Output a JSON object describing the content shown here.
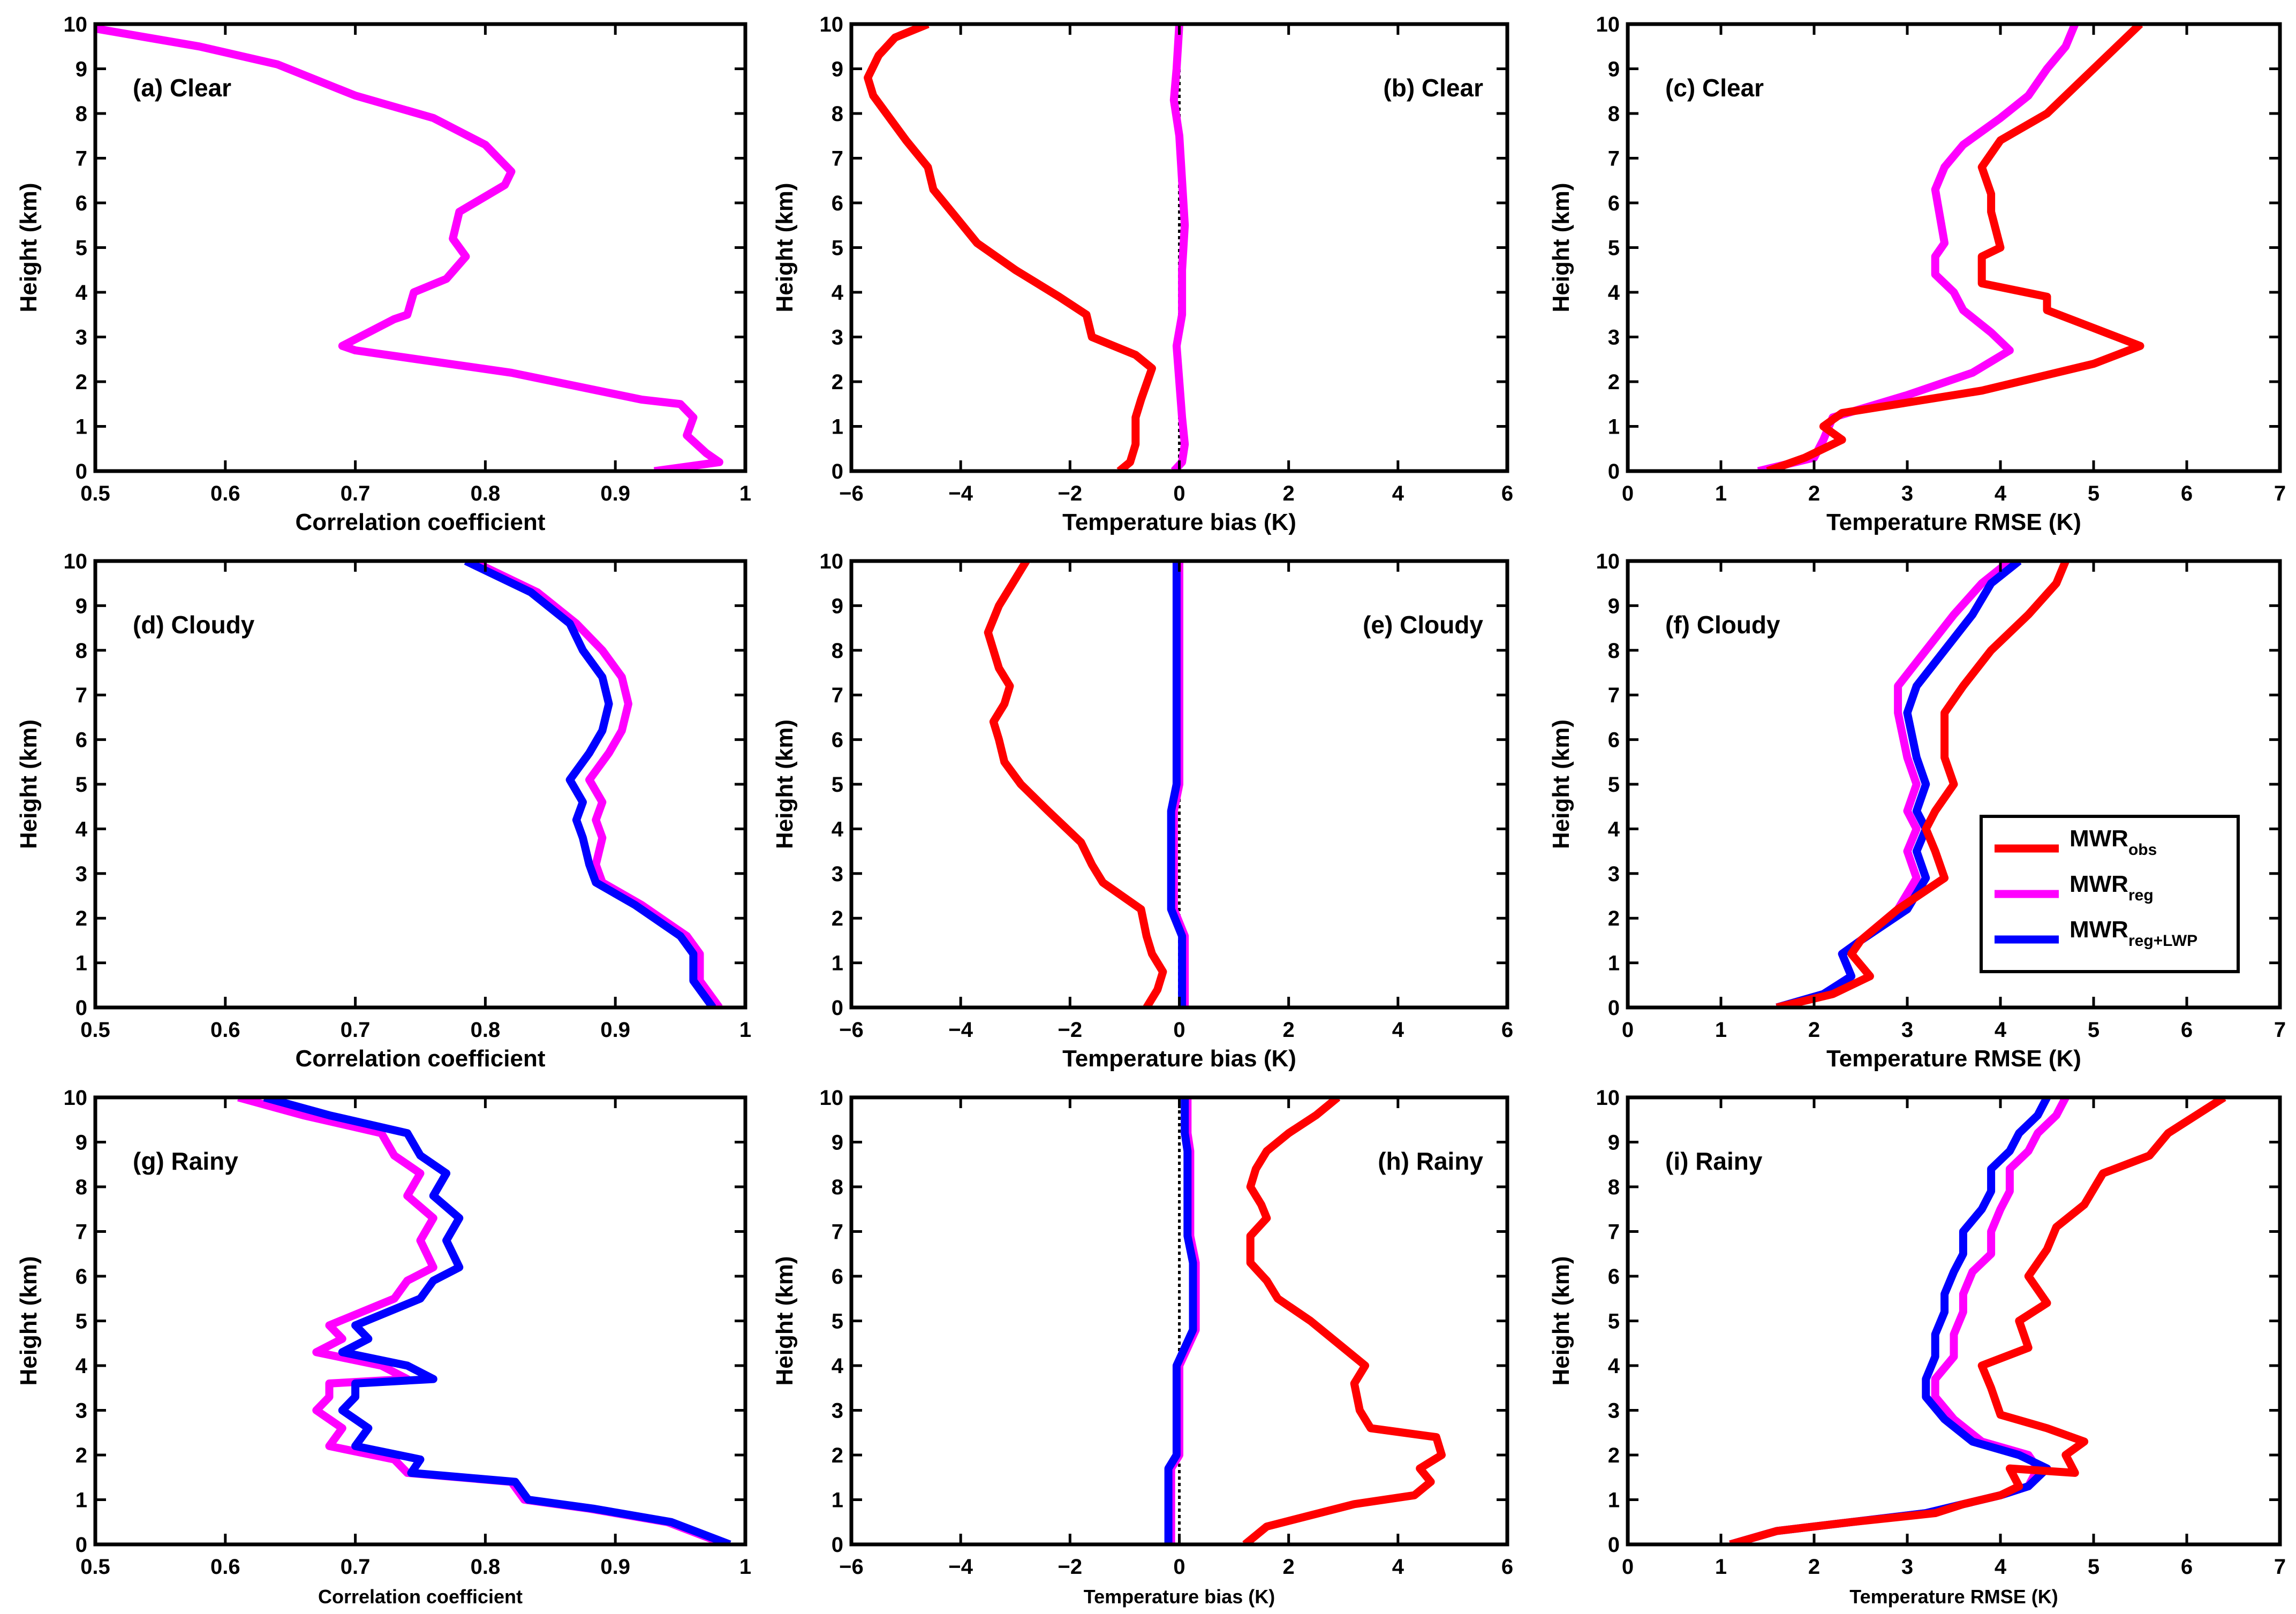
{
  "figure": {
    "legend": [
      {
        "base": "MWR",
        "sub": "obs",
        "color": "#ff0000"
      },
      {
        "base": "MWR",
        "sub": "reg",
        "color": "#ff00ff"
      },
      {
        "base": "MWR",
        "sub": "reg+LWP",
        "color": "#0000ff"
      }
    ]
  },
  "chart_data": [
    {
      "type": "line",
      "panel": "(a) Clear",
      "label_position": "top-left",
      "xlabel": "Correlation coefficient",
      "ylabel": "Height (km)",
      "xlim": [
        0.5,
        1
      ],
      "ylim": [
        0,
        10
      ],
      "xticks": [
        "0.5",
        "0.6",
        "0.7",
        "0.8",
        "0.9",
        "1"
      ],
      "yticks": [
        "0",
        "1",
        "2",
        "3",
        "4",
        "5",
        "6",
        "7",
        "8",
        "9",
        "10"
      ],
      "reference_line": null,
      "series": [
        {
          "name": "MWR_reg",
          "color": "#ff00ff",
          "x": [
            0.93,
            0.98,
            0.97,
            0.955,
            0.96,
            0.95,
            0.92,
            0.82,
            0.7,
            0.69,
            0.73,
            0.74,
            0.745,
            0.77,
            0.785,
            0.775,
            0.78,
            0.815,
            0.82,
            0.8,
            0.76,
            0.7,
            0.64,
            0.58,
            0.5
          ],
          "y": [
            0,
            0.2,
            0.4,
            0.8,
            1.2,
            1.5,
            1.6,
            2.2,
            2.7,
            2.8,
            3.4,
            3.5,
            4.0,
            4.3,
            4.8,
            5.2,
            5.8,
            6.4,
            6.7,
            7.3,
            7.9,
            8.4,
            9.1,
            9.5,
            9.9
          ]
        }
      ]
    },
    {
      "type": "line",
      "panel": "(b) Clear",
      "label_position": "top-right",
      "xlabel": "Temperature bias (K)",
      "ylabel": "Height (km)",
      "xlim": [
        -6,
        6
      ],
      "ylim": [
        0,
        10
      ],
      "xticks": [
        "−6",
        "−4",
        "−2",
        "0",
        "2",
        "4",
        "6"
      ],
      "yticks": [
        "0",
        "1",
        "2",
        "3",
        "4",
        "5",
        "6",
        "7",
        "8",
        "9",
        "10"
      ],
      "reference_line": 0,
      "series": [
        {
          "name": "MWR_obs",
          "color": "#ff0000",
          "x": [
            -1.1,
            -0.9,
            -0.8,
            -0.8,
            -0.7,
            -0.5,
            -0.8,
            -1.6,
            -1.7,
            -2.2,
            -3.0,
            -3.7,
            -4.1,
            -4.5,
            -4.6,
            -5.0,
            -5.3,
            -5.6,
            -5.7,
            -5.5,
            -5.2,
            -4.6
          ],
          "y": [
            0,
            0.2,
            0.6,
            1.2,
            1.6,
            2.3,
            2.6,
            3.0,
            3.5,
            3.9,
            4.5,
            5.1,
            5.7,
            6.3,
            6.8,
            7.4,
            7.9,
            8.4,
            8.8,
            9.3,
            9.7,
            10
          ]
        }
      ]
    },
    {
      "type": "line",
      "panel": "(c) Clear",
      "label_position": "top-left",
      "xlabel": "Temperature RMSE (K)",
      "ylabel": "Height (km)",
      "xlim": [
        0,
        7
      ],
      "ylim": [
        0,
        10
      ],
      "xticks": [
        "0",
        "1",
        "2",
        "3",
        "4",
        "5",
        "6",
        "7"
      ],
      "yticks": [
        "0",
        "1",
        "2",
        "3",
        "4",
        "5",
        "6",
        "7",
        "8",
        "9",
        "10"
      ],
      "reference_line": null,
      "series": [
        {
          "name": "MWR_obs",
          "color": "#ff0000",
          "x": [
            1.5,
            1.9,
            2.3,
            2.1,
            2.3,
            3.8,
            5.0,
            5.5,
            5.0,
            4.5,
            4.5,
            3.8,
            3.8,
            4.0,
            3.9,
            3.9,
            3.8,
            4.0,
            4.5,
            4.9,
            5.2,
            5.5
          ],
          "y": [
            0,
            0.3,
            0.7,
            1.0,
            1.3,
            1.8,
            2.4,
            2.8,
            3.2,
            3.6,
            3.9,
            4.2,
            4.8,
            5.0,
            5.8,
            6.2,
            6.8,
            7.4,
            8.0,
            8.8,
            9.4,
            10
          ]
        }
      ]
    },
    {
      "type": "line",
      "panel": "(d) Cloudy",
      "label_position": "top-left",
      "xlabel": "Correlation coefficient",
      "ylabel": "Height (km)",
      "xlim": [
        0.5,
        1
      ],
      "ylim": [
        0,
        10
      ],
      "xticks": [
        "0.5",
        "0.6",
        "0.7",
        "0.8",
        "0.9",
        "1"
      ],
      "yticks": [
        "0",
        "1",
        "2",
        "3",
        "4",
        "5",
        "6",
        "7",
        "8",
        "9",
        "10"
      ],
      "reference_line": null,
      "series": [
        {
          "name": "MWR_reg",
          "color": "#ff00ff",
          "x": [
            0.98,
            0.975,
            0.965,
            0.965,
            0.955,
            0.92,
            0.89,
            0.885,
            0.89,
            0.885,
            0.89,
            0.88,
            0.895,
            0.905,
            0.91,
            0.905,
            0.89,
            0.87,
            0.84,
            0.79
          ],
          "y": [
            0,
            0.2,
            0.6,
            1.2,
            1.6,
            2.3,
            2.8,
            3.2,
            3.8,
            4.2,
            4.6,
            5.1,
            5.7,
            6.2,
            6.8,
            7.4,
            8.0,
            8.6,
            9.3,
            10
          ]
        }
      ]
    },
    {
      "type": "line",
      "panel": "(e) Cloudy",
      "label_position": "top-right",
      "xlabel": "Temperature bias (K)",
      "ylabel": "Height (km)",
      "xlim": [
        -6,
        6
      ],
      "ylim": [
        0,
        10
      ],
      "xticks": [
        "−6",
        "−4",
        "−2",
        "0",
        "2",
        "4",
        "6"
      ],
      "yticks": [
        "0",
        "1",
        "2",
        "3",
        "4",
        "5",
        "6",
        "7",
        "8",
        "9",
        "10"
      ],
      "reference_line": 0,
      "series": [
        {
          "name": "MWR_obs",
          "color": "#ff0000",
          "x": [
            -0.6,
            -0.4,
            -0.3,
            -0.5,
            -0.6,
            -0.7,
            -1.4,
            -1.6,
            -1.8,
            -2.4,
            -2.9,
            -3.2,
            -3.3,
            -3.4,
            -3.2,
            -3.1,
            -3.3,
            -3.5,
            -3.3,
            -3.0,
            -2.8
          ],
          "y": [
            0,
            0.4,
            0.8,
            1.2,
            1.6,
            2.2,
            2.8,
            3.2,
            3.7,
            4.4,
            5.0,
            5.5,
            6.0,
            6.4,
            6.8,
            7.2,
            7.6,
            8.4,
            9.0,
            9.6,
            10
          ]
        }
      ]
    },
    {
      "type": "line",
      "panel": "(f) Cloudy",
      "label_position": "top-left",
      "xlabel": "Temperature RMSE (K)",
      "ylabel": "Height (km)",
      "xlim": [
        0,
        7
      ],
      "ylim": [
        0,
        10
      ],
      "xticks": [
        "0",
        "1",
        "2",
        "3",
        "4",
        "5",
        "6",
        "7"
      ],
      "yticks": [
        "0",
        "1",
        "2",
        "3",
        "4",
        "5",
        "6",
        "7",
        "8",
        "9",
        "10"
      ],
      "reference_line": null,
      "series": [
        {
          "name": "MWR_obs",
          "color": "#ff0000",
          "x": [
            1.6,
            2.2,
            2.6,
            2.4,
            2.5,
            2.9,
            3.4,
            3.3,
            3.2,
            3.3,
            3.5,
            3.4,
            3.4,
            3.6,
            3.9,
            4.3,
            4.6,
            4.7
          ],
          "y": [
            0,
            0.3,
            0.7,
            1.2,
            1.5,
            2.2,
            2.9,
            3.5,
            4.0,
            4.4,
            5.0,
            5.6,
            6.6,
            7.2,
            8.0,
            8.8,
            9.5,
            10
          ]
        }
      ]
    },
    {
      "type": "line",
      "panel": "(g) Rainy",
      "label_position": "top-left",
      "xlabel": "Correlation coefficient",
      "ylabel": "Height (km)",
      "xlim": [
        0.5,
        1
      ],
      "ylim": [
        0,
        10
      ],
      "xticks": [
        "0.5",
        "0.6",
        "0.7",
        "0.8",
        "0.9",
        "1"
      ],
      "yticks": [
        "0",
        "1",
        "2",
        "3",
        "4",
        "5",
        "6",
        "7",
        "8",
        "9",
        "10"
      ],
      "reference_line": null,
      "series": [
        {
          "name": "MWR_reg",
          "color": "#ff00ff",
          "x": [
            0.985,
            0.94,
            0.88,
            0.83,
            0.82,
            0.74,
            0.73,
            0.68,
            0.69,
            0.67,
            0.68,
            0.68,
            0.74,
            0.72,
            0.67,
            0.69,
            0.68,
            0.73,
            0.74,
            0.76,
            0.75,
            0.76,
            0.74,
            0.75,
            0.73,
            0.72,
            0.66,
            0.61
          ],
          "y": [
            0,
            0.5,
            0.8,
            1.0,
            1.4,
            1.6,
            1.9,
            2.2,
            2.6,
            3.0,
            3.3,
            3.6,
            3.7,
            4.0,
            4.3,
            4.6,
            4.9,
            5.5,
            5.9,
            6.2,
            6.8,
            7.3,
            7.8,
            8.3,
            8.7,
            9.2,
            9.6,
            10
          ]
        }
      ]
    },
    {
      "type": "line",
      "panel": "(h) Rainy",
      "label_position": "top-right",
      "xlabel": "Temperature bias (K)",
      "ylabel": "Height (km)",
      "xlim": [
        -6,
        6
      ],
      "ylim": [
        0,
        10
      ],
      "xticks": [
        "−6",
        "−4",
        "−2",
        "0",
        "2",
        "4",
        "6"
      ],
      "yticks": [
        "0",
        "1",
        "2",
        "3",
        "4",
        "5",
        "6",
        "7",
        "8",
        "9",
        "10"
      ],
      "reference_line": 0,
      "series": [
        {
          "name": "MWR_obs",
          "color": "#ff0000",
          "x": [
            1.2,
            1.6,
            3.2,
            4.3,
            4.6,
            4.4,
            4.8,
            4.7,
            3.5,
            3.3,
            3.2,
            3.4,
            2.6,
            2.4,
            1.8,
            1.6,
            1.3,
            1.3,
            1.6,
            1.5,
            1.3,
            1.4,
            1.6,
            2.0,
            2.5,
            2.9
          ],
          "y": [
            0,
            0.4,
            0.9,
            1.1,
            1.4,
            1.7,
            2.0,
            2.4,
            2.6,
            3.0,
            3.6,
            4.0,
            4.8,
            5.0,
            5.5,
            5.9,
            6.3,
            6.9,
            7.3,
            7.6,
            8.0,
            8.4,
            8.8,
            9.2,
            9.6,
            10
          ]
        }
      ]
    },
    {
      "type": "line",
      "panel": "(i) Rainy",
      "label_position": "top-left",
      "xlabel": "Temperature RMSE (K)",
      "ylabel": "Height (km)",
      "xlim": [
        0,
        7
      ],
      "ylim": [
        0,
        10
      ],
      "xticks": [
        "0",
        "1",
        "2",
        "3",
        "4",
        "5",
        "6",
        "7"
      ],
      "yticks": [
        "0",
        "1",
        "2",
        "3",
        "4",
        "5",
        "6",
        "7",
        "8",
        "9",
        "10"
      ],
      "reference_line": null,
      "series": [
        {
          "name": "MWR_obs",
          "color": "#ff0000",
          "x": [
            1.1,
            1.6,
            2.4,
            3.3,
            3.6,
            4.0,
            4.2,
            4.1,
            4.8,
            4.7,
            4.9,
            4.5,
            4.0,
            3.9,
            3.8,
            4.3,
            4.2,
            4.5,
            4.3,
            4.5,
            4.6,
            4.9,
            5.1,
            5.6,
            5.8,
            6.1,
            6.4
          ],
          "y": [
            0,
            0.3,
            0.5,
            0.7,
            0.9,
            1.1,
            1.3,
            1.7,
            1.6,
            2.0,
            2.3,
            2.6,
            2.9,
            3.5,
            4.0,
            4.4,
            5.0,
            5.4,
            6.0,
            6.6,
            7.1,
            7.6,
            8.3,
            8.7,
            9.2,
            9.6,
            10
          ]
        }
      ]
    }
  ]
}
